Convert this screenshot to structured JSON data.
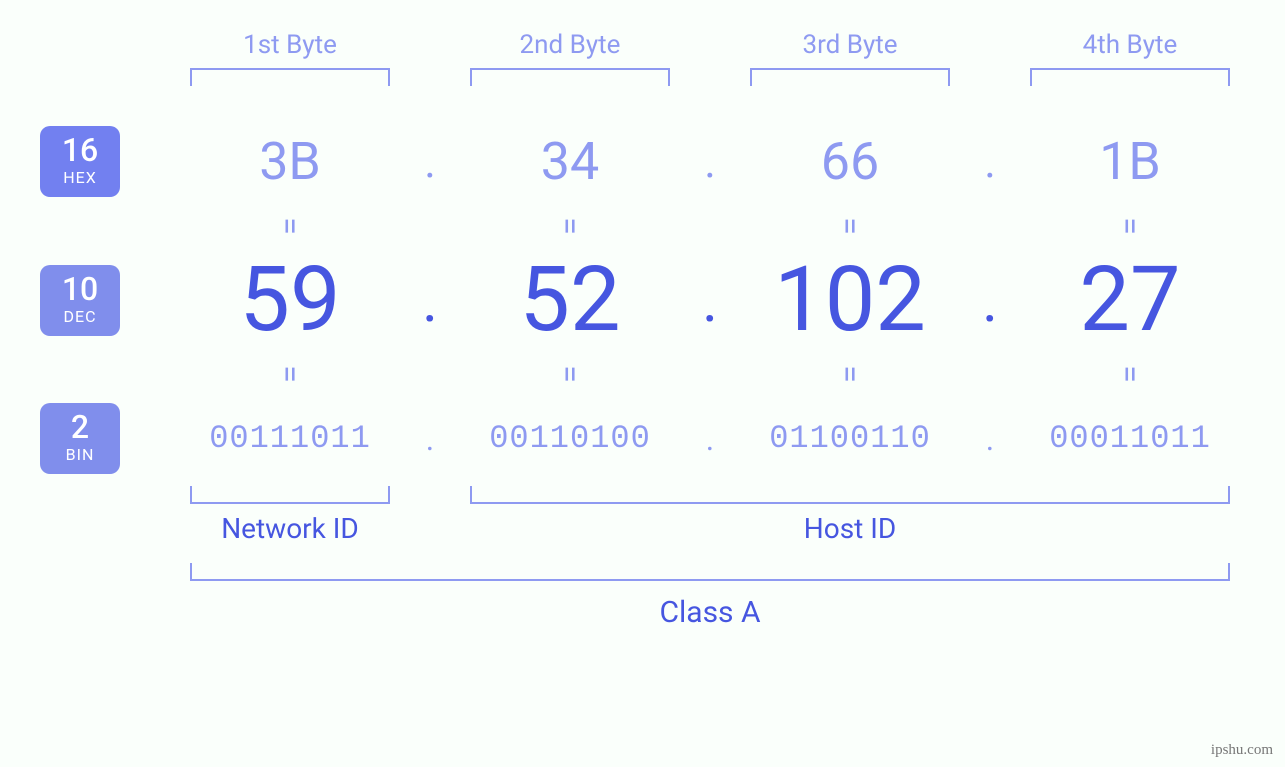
{
  "colors": {
    "background": "#fafffb",
    "primary": "#4656e0",
    "light": "#8e9af1",
    "badge_bg": "#808eec",
    "white": "#ffffff"
  },
  "fontsizes": {
    "byte_label": 26,
    "hex": 52,
    "dec": 90,
    "bin": 32,
    "badge_num": 32,
    "badge_lbl": 16,
    "nh_label": 28,
    "class_label": 30
  },
  "byte_headers": [
    "1st Byte",
    "2nd Byte",
    "3rd Byte",
    "4th Byte"
  ],
  "badges": [
    {
      "num": "16",
      "label": "HEX"
    },
    {
      "num": "10",
      "label": "DEC"
    },
    {
      "num": "2",
      "label": "BIN"
    }
  ],
  "hex": [
    "3B",
    "34",
    "66",
    "1B"
  ],
  "dec": [
    "59",
    "52",
    "102",
    "27"
  ],
  "bin": [
    "00111011",
    "00110100",
    "01100110",
    "00011011"
  ],
  "separator": ".",
  "equals": "=",
  "network_label": "Network ID",
  "host_label": "Host ID",
  "class_label": "Class A",
  "watermark": "ipshu.com"
}
